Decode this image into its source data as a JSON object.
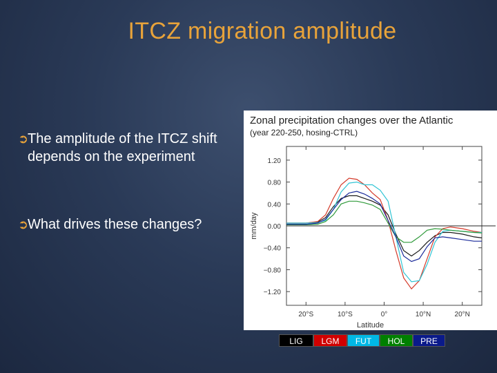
{
  "slide": {
    "title": "ITCZ migration amplitude",
    "bullets": [
      "The amplitude of the ITCZ shift depends on the experiment",
      "What drives these changes?"
    ],
    "bullet_icon": "circled-arrow-icon"
  },
  "colors": {
    "title": "#e8a33a",
    "LIG": "#1a1a1a",
    "LGM": "#d43a2a",
    "FUT": "#2fc4d4",
    "HOL": "#2f9a3a",
    "PRE": "#1a2a9a"
  },
  "chart_data": {
    "type": "line",
    "title": "Zonal precipitation changes over the Atlantic",
    "subtitle": "(year 220-250, hosing-CTRL)",
    "xlabel": "Latitude",
    "ylabel": "mm/day",
    "xticks": [
      "20°S",
      "10°S",
      "0°",
      "10°N",
      "20°N"
    ],
    "xtick_values": [
      -20,
      -10,
      0,
      10,
      20
    ],
    "yticks": [
      "1.20",
      "0.80",
      "0.40",
      "0.00",
      "−0.40",
      "−0.80",
      "−1.20"
    ],
    "ytick_values": [
      1.2,
      0.8,
      0.4,
      0.0,
      -0.4,
      -0.8,
      -1.2
    ],
    "xlim": [
      -25,
      25
    ],
    "ylim": [
      -1.45,
      1.45
    ],
    "zero_line": true,
    "x": [
      -25,
      -20,
      -17,
      -15,
      -13,
      -11,
      -9,
      -7,
      -5,
      -3,
      -1,
      1,
      3,
      5,
      7,
      9,
      11,
      13,
      15,
      17,
      20,
      23,
      25
    ],
    "series": [
      {
        "name": "LIG",
        "values": [
          0.05,
          0.05,
          0.07,
          0.15,
          0.35,
          0.5,
          0.55,
          0.55,
          0.5,
          0.45,
          0.38,
          0.2,
          -0.15,
          -0.45,
          -0.55,
          -0.45,
          -0.3,
          -0.18,
          -0.12,
          -0.12,
          -0.15,
          -0.2,
          -0.22
        ]
      },
      {
        "name": "LGM",
        "values": [
          0.05,
          0.05,
          0.08,
          0.2,
          0.5,
          0.75,
          0.87,
          0.85,
          0.75,
          0.6,
          0.48,
          0.1,
          -0.45,
          -0.95,
          -1.15,
          -1.0,
          -0.6,
          -0.2,
          -0.05,
          -0.02,
          -0.05,
          -0.1,
          -0.12
        ]
      },
      {
        "name": "FUT",
        "values": [
          0.05,
          0.05,
          0.06,
          0.1,
          0.3,
          0.62,
          0.78,
          0.8,
          0.75,
          0.75,
          0.65,
          0.45,
          -0.2,
          -0.85,
          -1.02,
          -1.0,
          -0.7,
          -0.3,
          -0.1,
          -0.08,
          -0.1,
          -0.12,
          -0.12
        ]
      },
      {
        "name": "HOL",
        "values": [
          0.02,
          0.02,
          0.03,
          0.08,
          0.2,
          0.4,
          0.45,
          0.45,
          0.42,
          0.38,
          0.3,
          0.05,
          -0.2,
          -0.3,
          -0.3,
          -0.2,
          -0.08,
          -0.05,
          -0.06,
          -0.08,
          -0.1,
          -0.12,
          -0.13
        ]
      },
      {
        "name": "PRE",
        "values": [
          0.03,
          0.03,
          0.05,
          0.12,
          0.3,
          0.48,
          0.6,
          0.63,
          0.58,
          0.5,
          0.4,
          0.1,
          -0.2,
          -0.55,
          -0.65,
          -0.6,
          -0.38,
          -0.22,
          -0.2,
          -0.22,
          -0.25,
          -0.28,
          -0.28
        ]
      }
    ],
    "legend": [
      "LIG",
      "LGM",
      "FUT",
      "HOL",
      "PRE"
    ],
    "legend_placement": "bottom"
  }
}
